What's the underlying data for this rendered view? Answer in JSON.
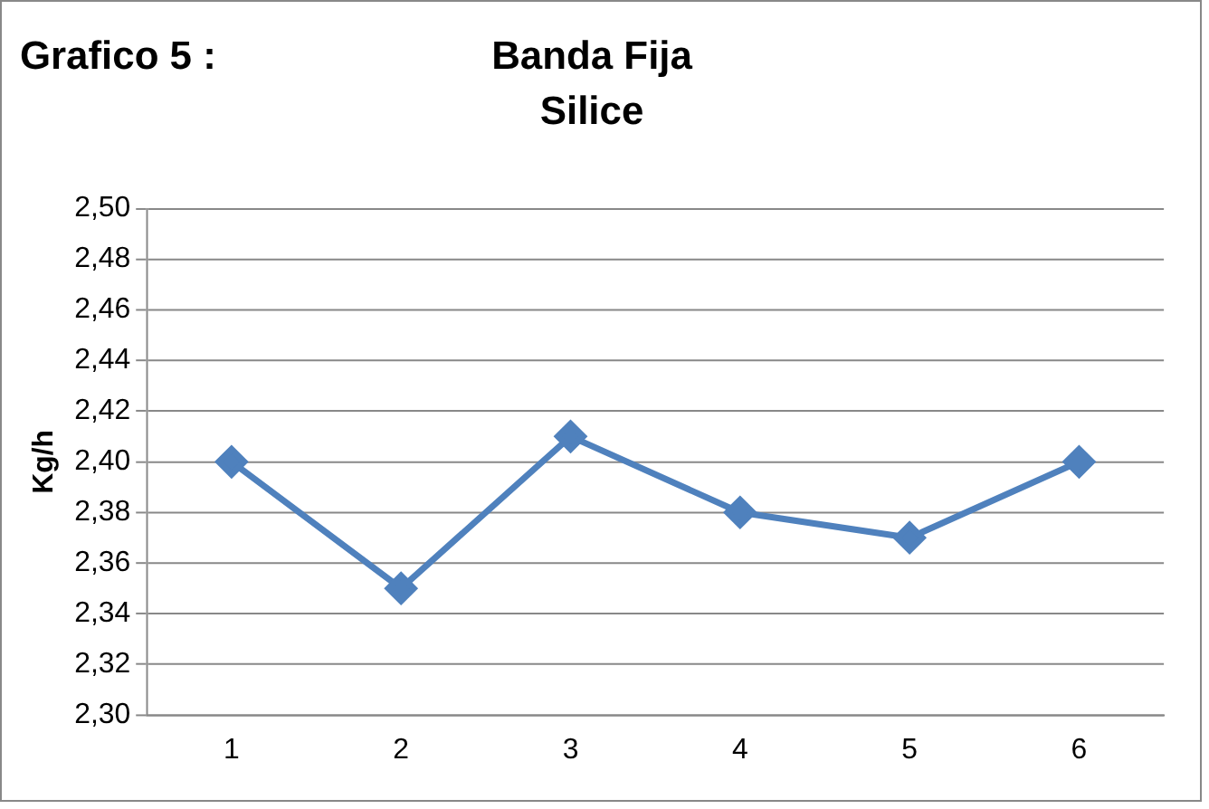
{
  "chart_data": {
    "type": "line",
    "title": "Banda Fija",
    "subtitle": "Silice",
    "annotations": [
      "Grafico 5 :"
    ],
    "ylabel": "Kg/h",
    "categories": [
      "1",
      "2",
      "3",
      "4",
      "5",
      "6"
    ],
    "series": [
      {
        "color": "#4f81bd",
        "values": [
          2.4,
          2.35,
          2.41,
          2.38,
          2.37,
          2.4
        ]
      }
    ],
    "ylim": [
      2.3,
      2.5
    ],
    "yticks": [
      {
        "value": 2.3,
        "label": "2,30"
      },
      {
        "value": 2.32,
        "label": "2,32"
      },
      {
        "value": 2.34,
        "label": "2,34"
      },
      {
        "value": 2.36,
        "label": "2,36"
      },
      {
        "value": 2.38,
        "label": "2,38"
      },
      {
        "value": 2.4,
        "label": "2,40"
      },
      {
        "value": 2.42,
        "label": "2,42"
      },
      {
        "value": 2.44,
        "label": "2,44"
      },
      {
        "value": 2.46,
        "label": "2,46"
      },
      {
        "value": 2.48,
        "label": "2,48"
      },
      {
        "value": 2.5,
        "label": "2,50"
      }
    ],
    "grid": "y",
    "legend": false,
    "marker": "diamond",
    "line_style": "solid"
  }
}
